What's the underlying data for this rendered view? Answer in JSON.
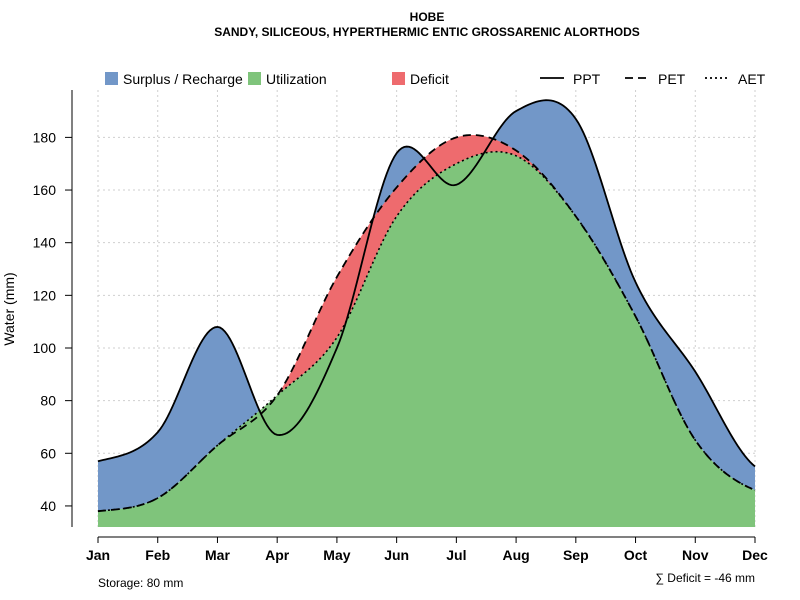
{
  "chart_data": {
    "type": "area",
    "title": "HOBE",
    "subtitle": "SANDY, SILICEOUS, HYPERTHERMIC ENTIC GROSSARENIC ALORTHODS",
    "xlabel": "",
    "ylabel": "Water (mm)",
    "categories": [
      "Jan",
      "Feb",
      "Mar",
      "Apr",
      "May",
      "Jun",
      "Jul",
      "Aug",
      "Sep",
      "Oct",
      "Nov",
      "Dec"
    ],
    "ylim": [
      32,
      198
    ],
    "yticks": [
      40,
      60,
      80,
      100,
      120,
      140,
      160,
      180
    ],
    "series": [
      {
        "name": "PPT",
        "values": [
          57,
          68,
          108,
          67,
          100,
          174,
          162,
          190,
          187,
          125,
          91,
          55
        ]
      },
      {
        "name": "PET",
        "values": [
          38,
          43,
          63,
          82,
          127,
          161,
          180,
          175,
          150,
          112,
          65,
          46
        ]
      },
      {
        "name": "AET",
        "values": [
          38,
          43,
          63,
          82,
          104,
          150,
          170,
          173,
          150,
          112,
          65,
          46
        ]
      }
    ],
    "legend": [
      {
        "label": "Surplus / Recharge",
        "kind": "fill",
        "color": "#7297c8"
      },
      {
        "label": "Utilization",
        "kind": "fill",
        "color": "#7fc47b"
      },
      {
        "label": "Deficit",
        "kind": "fill",
        "color": "#ee6b6e"
      },
      {
        "label": "PPT",
        "kind": "line",
        "dash": "solid"
      },
      {
        "label": "PET",
        "kind": "line",
        "dash": "dashed"
      },
      {
        "label": "AET",
        "kind": "line",
        "dash": "dotted"
      }
    ],
    "legend_position": "top",
    "grid": true,
    "storage_label": "Storage: 80 mm",
    "deficit_label": "∑ Deficit = -46 mm",
    "colors": {
      "surplus": "#7297c8",
      "utilization": "#7fc47b",
      "deficit": "#ee6b6e",
      "line": "#000000",
      "grid": "#cfcfcf"
    }
  }
}
